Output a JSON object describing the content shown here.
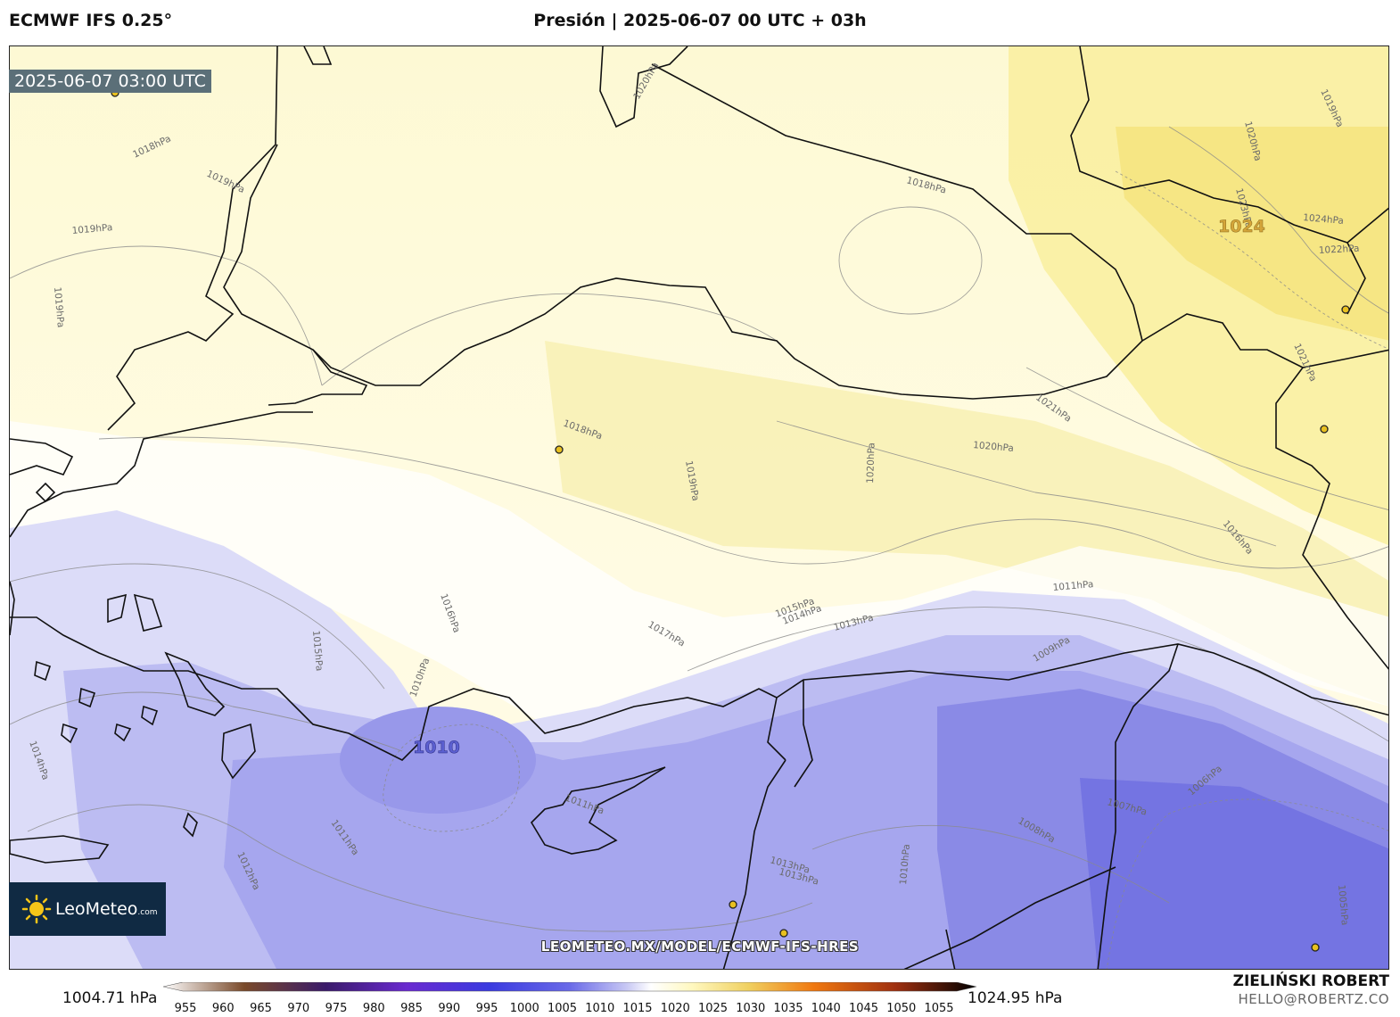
{
  "header": {
    "model": "ECMWF IFS 0.25°",
    "title": "Presión | 2025-06-07 00 UTC + 03h"
  },
  "map": {
    "timestamp": "2025-06-07 03:00 UTC",
    "highs_lows": [
      {
        "label": "1024",
        "kind": "high",
        "color": "#d4a53a"
      },
      {
        "label": "1010",
        "kind": "low",
        "color": "#5b5fd0"
      }
    ],
    "contour_labels": [
      "1020hPa",
      "1018hPa",
      "1019hPa",
      "1019hPa",
      "1019hPa",
      "1018hPa",
      "1019hPa",
      "1020hPa",
      "1023hPa",
      "1024hPa",
      "1022hPa",
      "1018hPa",
      "1019hPa",
      "1020hPa",
      "1021hPa",
      "1020hPa",
      "1021hPa",
      "1016hPa",
      "1011hPa",
      "1015hPa",
      "1014hPa",
      "1013hPa",
      "1009hPa",
      "1016hPa",
      "1015hPa",
      "1017hPa",
      "1010hPa",
      "1014hPa",
      "1011hPa",
      "1011hPa",
      "1012hPa",
      "1013hPa",
      "1013hPa",
      "1010hPa",
      "1008hPa",
      "1007hPa",
      "1006hPa",
      "1005hPa",
      "1018hPa",
      "1019hPa"
    ],
    "url": "LEOMETEO.MX/MODEL/ECMWF-IFS-HRES"
  },
  "logo": {
    "name": "LeoMeteo",
    "suffix": ".com"
  },
  "colorbar": {
    "min_label": "1004.71 hPa",
    "max_label": "1024.95 hPa",
    "ticks": [
      "955",
      "960",
      "965",
      "970",
      "975",
      "980",
      "985",
      "990",
      "995",
      "1000",
      "1005",
      "1010",
      "1015",
      "1020",
      "1025",
      "1030",
      "1035",
      "1040",
      "1045",
      "1050",
      "1055"
    ],
    "stops": [
      {
        "value": 955,
        "color": "#ffffff"
      },
      {
        "value": 965,
        "color": "#7a4a2a"
      },
      {
        "value": 975,
        "color": "#3a1a6a"
      },
      {
        "value": 985,
        "color": "#6a2ad0"
      },
      {
        "value": 995,
        "color": "#3a3ae0"
      },
      {
        "value": 1005,
        "color": "#6a6ae8"
      },
      {
        "value": 1012,
        "color": "#c8c8f4"
      },
      {
        "value": 1015,
        "color": "#ffffff"
      },
      {
        "value": 1020,
        "color": "#fff8c0"
      },
      {
        "value": 1027,
        "color": "#f0d060"
      },
      {
        "value": 1035,
        "color": "#f07810"
      },
      {
        "value": 1045,
        "color": "#a03010"
      },
      {
        "value": 1055,
        "color": "#000000"
      }
    ]
  },
  "credits": {
    "author": "ZIELIŃSKI ROBERT",
    "email": "HELLO@ROBERTZ.CO"
  }
}
